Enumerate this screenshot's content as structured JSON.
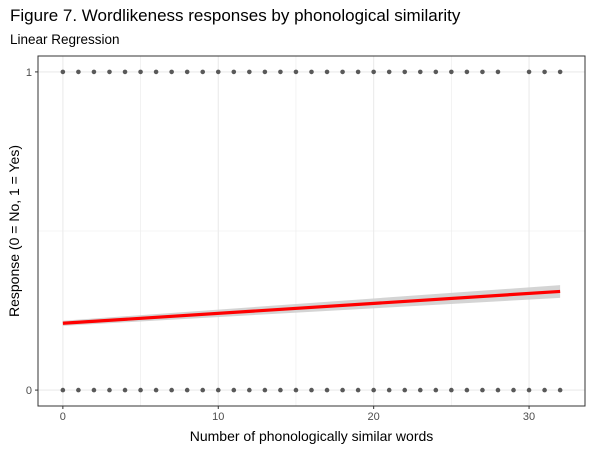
{
  "chart_data": {
    "type": "scatter",
    "title": "Figure 7. Wordlikeness responses by phonological similarity",
    "subtitle": "Linear Regression",
    "xlabel": "Number of phonologically similar words",
    "ylabel": "Response (0 = No, 1 = Yes)",
    "xlim": [
      -1.6,
      33.6
    ],
    "ylim": [
      -0.05,
      1.05
    ],
    "x_ticks": [
      0,
      10,
      20,
      30
    ],
    "y_ticks": [
      0,
      1
    ],
    "grid": true,
    "points_y1_x": [
      0,
      1,
      2,
      3,
      4,
      5,
      6,
      7,
      8,
      9,
      10,
      11,
      12,
      13,
      14,
      15,
      16,
      17,
      18,
      19,
      20,
      21,
      22,
      23,
      24,
      25,
      26,
      27,
      28,
      30,
      31,
      32
    ],
    "points_y0_x": [
      0,
      1,
      2,
      3,
      4,
      5,
      6,
      7,
      8,
      9,
      10,
      11,
      12,
      13,
      14,
      15,
      16,
      17,
      18,
      19,
      20,
      21,
      22,
      23,
      24,
      25,
      26,
      27,
      28,
      29,
      30,
      31,
      32
    ],
    "regression": {
      "x": [
        0,
        32
      ],
      "y": [
        0.21,
        0.31
      ],
      "ci_halfwidth": [
        0.008,
        0.02
      ]
    },
    "colors": {
      "points": "#595959",
      "line": "#ff0000",
      "ribbon": "#cccccc",
      "grid": "#ebebeb",
      "panel_border": "#333333"
    }
  }
}
